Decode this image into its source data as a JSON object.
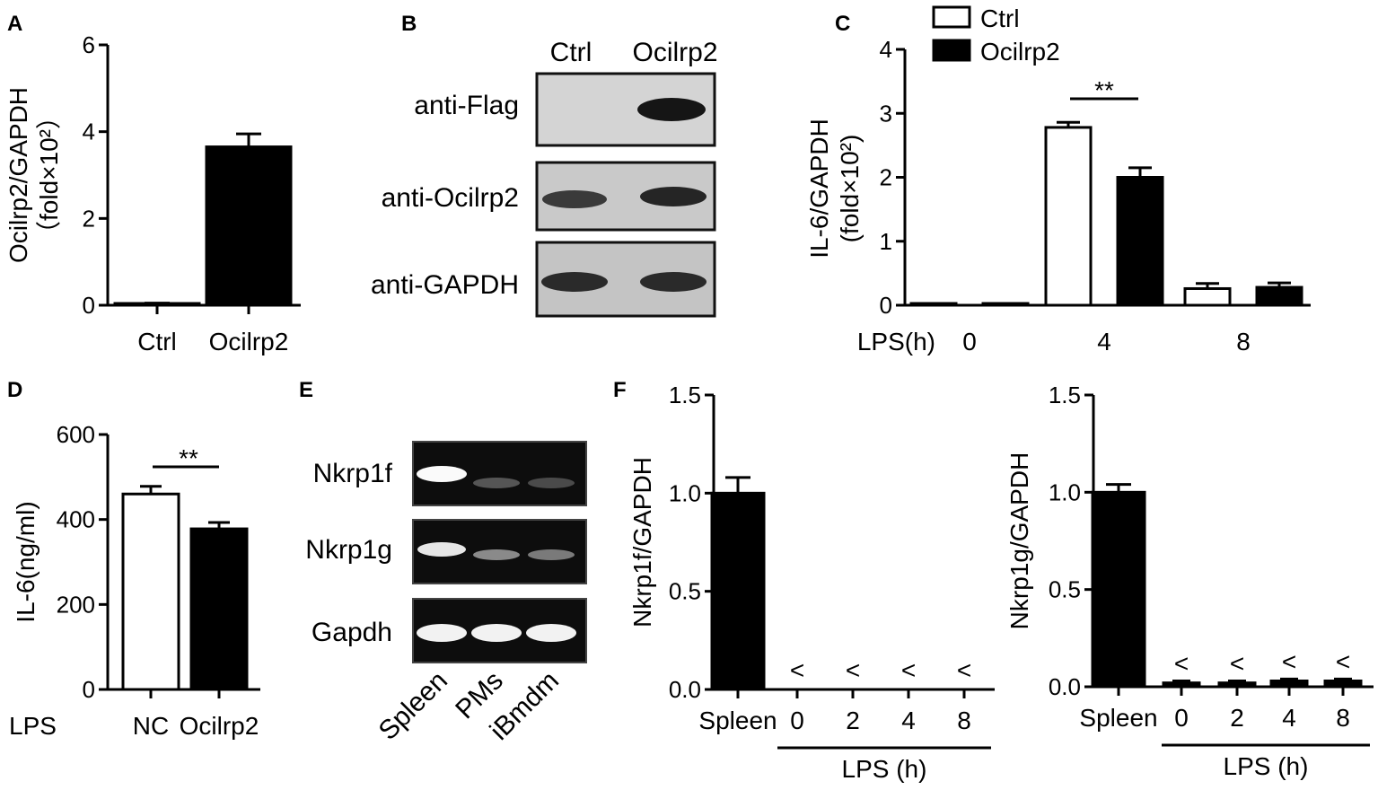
{
  "panels": {
    "A": {
      "label": "A"
    },
    "B": {
      "label": "B"
    },
    "C": {
      "label": "C"
    },
    "D": {
      "label": "D"
    },
    "E": {
      "label": "E"
    },
    "F": {
      "label": "F"
    }
  },
  "western_blot": {
    "columns": [
      "Ctrl",
      "Ocilrp2"
    ],
    "rows": [
      "anti-Flag",
      "anti-Ocilrp2",
      "anti-GAPDH"
    ]
  },
  "pcr_gel": {
    "rows": [
      "Nkrp1f",
      "Nkrp1g",
      "Gapdh"
    ],
    "lanes": [
      "Spleen",
      "PMs",
      "iBmdm"
    ]
  },
  "chart_data": [
    {
      "panel": "A",
      "type": "bar",
      "categories": [
        "Ctrl",
        "Ocilrp2"
      ],
      "values": [
        0.03,
        3.65
      ],
      "errors": [
        0.02,
        0.3
      ],
      "ylabel_line1": "Ocilrp2/GAPDH",
      "ylabel_line2": "（fold×10²）",
      "ylim": [
        0,
        6
      ],
      "yticks": [
        "0",
        "2",
        "4",
        "6"
      ],
      "colors": [
        "#000000",
        "#000000"
      ]
    },
    {
      "panel": "C",
      "type": "bar",
      "xlabel_prefix": "LPS(h)",
      "categories": [
        "0",
        "4",
        "8"
      ],
      "series": [
        {
          "name": "Ctrl",
          "values": [
            0.01,
            2.78,
            0.26
          ],
          "errors": [
            0.0,
            0.08,
            0.08
          ],
          "fill": "#ffffff"
        },
        {
          "name": "Ocilrp2",
          "values": [
            0.02,
            2.0,
            0.28
          ],
          "errors": [
            0.0,
            0.15,
            0.07
          ],
          "fill": "#000000"
        }
      ],
      "ylabel_line1": "IL-6/GAPDH",
      "ylabel_line2": "(fold×10²)",
      "ylim": [
        0,
        4
      ],
      "yticks": [
        "0",
        "1",
        "2",
        "3",
        "4"
      ],
      "significance": "**",
      "legend_position": "top"
    },
    {
      "panel": "D",
      "type": "bar",
      "xlabel_prefix": "LPS",
      "categories": [
        "NC",
        "Ocilrp2"
      ],
      "values": [
        460,
        378
      ],
      "errors": [
        18,
        15
      ],
      "fills": [
        "#ffffff",
        "#000000"
      ],
      "ylabel": "IL-6(ng/ml)",
      "ylim": [
        0,
        600
      ],
      "yticks": [
        "0",
        "200",
        "400",
        "600"
      ],
      "significance": "**"
    },
    {
      "panel": "F1",
      "type": "bar",
      "categories": [
        "Spleen",
        "0",
        "2",
        "4",
        "8"
      ],
      "values": [
        1.0,
        0.0,
        0.0,
        0.0,
        0.0
      ],
      "errors": [
        0.08,
        0,
        0,
        0,
        0
      ],
      "annotations": [
        "",
        "<",
        "<",
        "<",
        "<"
      ],
      "ylabel": "Nkrp1f/GAPDH",
      "ylim": [
        0,
        1.5
      ],
      "yticks": [
        "0.0",
        "0.5",
        "1.0",
        "1.5"
      ],
      "group_label": "LPS (h)"
    },
    {
      "panel": "F2",
      "type": "bar",
      "categories": [
        "Spleen",
        "0",
        "2",
        "4",
        "8"
      ],
      "values": [
        1.0,
        0.02,
        0.02,
        0.03,
        0.03
      ],
      "errors": [
        0.04,
        0.01,
        0.01,
        0.01,
        0.01
      ],
      "annotations": [
        "",
        "<",
        "<",
        "<",
        "<"
      ],
      "ylabel": "Nkrp1g/GAPDH",
      "ylim": [
        0,
        1.5
      ],
      "yticks": [
        "0.0",
        "0.5",
        "1.0",
        "1.5"
      ],
      "group_label": "LPS (h)"
    }
  ]
}
